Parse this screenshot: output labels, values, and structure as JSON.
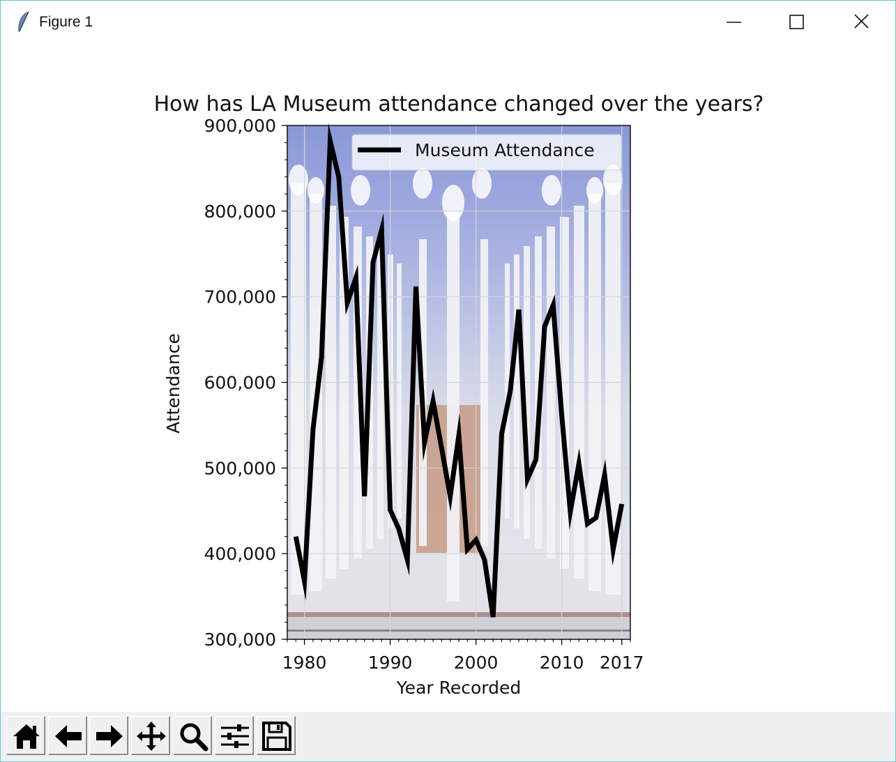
{
  "window": {
    "title": "Figure 1"
  },
  "chart_data": {
    "type": "line",
    "title": "How has LA Museum attendance changed over the years?",
    "xlabel": "Year Recorded",
    "ylabel": "Attendance",
    "xlim": [
      1978,
      2018
    ],
    "ylim": [
      300000,
      900000
    ],
    "xticks": [
      1980,
      1990,
      2000,
      2010,
      2017
    ],
    "xtick_labels": [
      "1980",
      "1990",
      "2000",
      "2010",
      "2017"
    ],
    "yticks": [
      300000,
      400000,
      500000,
      600000,
      700000,
      800000,
      900000
    ],
    "ytick_labels": [
      "300,000",
      "400,000",
      "500,000",
      "600,000",
      "700,000",
      "800,000",
      "900,000"
    ],
    "grid": true,
    "legend_position": "top-right",
    "background": "photo of lamp-post installation",
    "series": [
      {
        "name": "Museum Attendance",
        "color": "#000000",
        "x": [
          1979,
          1980,
          1981,
          1982,
          1983,
          1984,
          1985,
          1986,
          1987,
          1988,
          1989,
          1990,
          1991,
          1992,
          1993,
          1994,
          1995,
          1996,
          1997,
          1998,
          1999,
          2000,
          2001,
          2002,
          2003,
          2004,
          2005,
          2006,
          2007,
          2008,
          2009,
          2010,
          2011,
          2012,
          2013,
          2014,
          2015,
          2016,
          2017
        ],
        "y": [
          420000,
          368000,
          545000,
          630000,
          882000,
          840000,
          693000,
          722000,
          467000,
          740000,
          778000,
          451000,
          429000,
          393000,
          712000,
          530000,
          578000,
          523000,
          467000,
          538000,
          405000,
          416000,
          393000,
          326000,
          540000,
          590000,
          685000,
          487000,
          510000,
          665000,
          690000,
          562000,
          449000,
          505000,
          435000,
          442000,
          492000,
          405000,
          458000
        ]
      }
    ]
  },
  "toolbar": {
    "tools": [
      {
        "icon": "home-icon"
      },
      {
        "icon": "back-arrow-icon"
      },
      {
        "icon": "forward-arrow-icon"
      },
      {
        "icon": "pan-icon"
      },
      {
        "icon": "zoom-icon"
      },
      {
        "icon": "subplots-icon"
      },
      {
        "icon": "save-icon"
      }
    ]
  }
}
